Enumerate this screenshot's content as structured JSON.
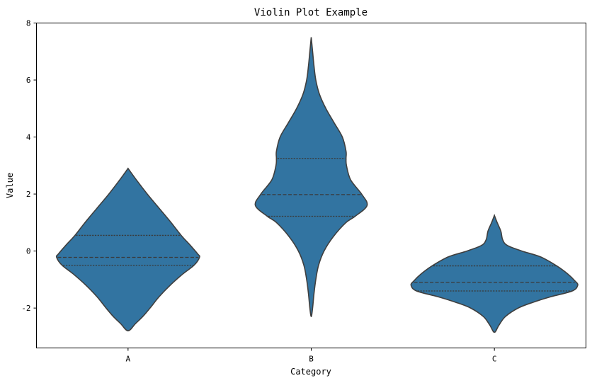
{
  "chart_data": {
    "type": "violin",
    "title": "Violin Plot Example",
    "xlabel": "Category",
    "ylabel": "Value",
    "categories": [
      "A",
      "B",
      "C"
    ],
    "ylim": [
      -3.4,
      8.0
    ],
    "yticks": [
      -2,
      0,
      2,
      4,
      6,
      8
    ],
    "grid": false,
    "inner": "quartile",
    "fill_color": "#3274a1",
    "edge_color": "#3f3f3f",
    "series": [
      {
        "category": "A",
        "min": -2.8,
        "max": 2.9,
        "q1": -0.5,
        "median": -0.22,
        "q3": 0.55,
        "density_profile": [
          [
            2.9,
            0.0
          ],
          [
            2.5,
            0.09
          ],
          [
            2.0,
            0.21
          ],
          [
            1.5,
            0.34
          ],
          [
            1.0,
            0.47
          ],
          [
            0.55,
            0.58
          ],
          [
            0.2,
            0.68
          ],
          [
            -0.1,
            0.76
          ],
          [
            -0.22,
            0.78
          ],
          [
            -0.5,
            0.72
          ],
          [
            -0.8,
            0.6
          ],
          [
            -1.2,
            0.46
          ],
          [
            -1.6,
            0.34
          ],
          [
            -2.0,
            0.24
          ],
          [
            -2.3,
            0.16
          ],
          [
            -2.55,
            0.08
          ],
          [
            -2.8,
            0.0
          ]
        ]
      },
      {
        "category": "B",
        "min": -2.3,
        "max": 7.5,
        "q1": 1.22,
        "median": 1.98,
        "q3": 3.25,
        "density_profile": [
          [
            7.5,
            0.0
          ],
          [
            7.0,
            0.015
          ],
          [
            6.5,
            0.03
          ],
          [
            6.0,
            0.05
          ],
          [
            5.5,
            0.09
          ],
          [
            5.0,
            0.16
          ],
          [
            4.5,
            0.25
          ],
          [
            4.0,
            0.34
          ],
          [
            3.5,
            0.38
          ],
          [
            3.25,
            0.38
          ],
          [
            3.0,
            0.385
          ],
          [
            2.5,
            0.43
          ],
          [
            2.0,
            0.55
          ],
          [
            1.6,
            0.61
          ],
          [
            1.22,
            0.48
          ],
          [
            1.0,
            0.38
          ],
          [
            0.5,
            0.24
          ],
          [
            0.0,
            0.14
          ],
          [
            -0.5,
            0.08
          ],
          [
            -1.0,
            0.05
          ],
          [
            -1.5,
            0.03
          ],
          [
            -2.0,
            0.015
          ],
          [
            -2.3,
            0.0
          ]
        ]
      },
      {
        "category": "C",
        "min": -2.85,
        "max": 1.25,
        "q1": -1.4,
        "median": -1.1,
        "q3": -0.52,
        "density_profile": [
          [
            1.25,
            0.0
          ],
          [
            1.0,
            0.03
          ],
          [
            0.7,
            0.07
          ],
          [
            0.4,
            0.09
          ],
          [
            0.2,
            0.14
          ],
          [
            0.0,
            0.3
          ],
          [
            -0.2,
            0.5
          ],
          [
            -0.5,
            0.67
          ],
          [
            -0.8,
            0.8
          ],
          [
            -1.05,
            0.88
          ],
          [
            -1.2,
            0.91
          ],
          [
            -1.4,
            0.85
          ],
          [
            -1.6,
            0.62
          ],
          [
            -1.8,
            0.42
          ],
          [
            -2.0,
            0.26
          ],
          [
            -2.3,
            0.12
          ],
          [
            -2.6,
            0.05
          ],
          [
            -2.85,
            0.0
          ]
        ]
      }
    ]
  }
}
